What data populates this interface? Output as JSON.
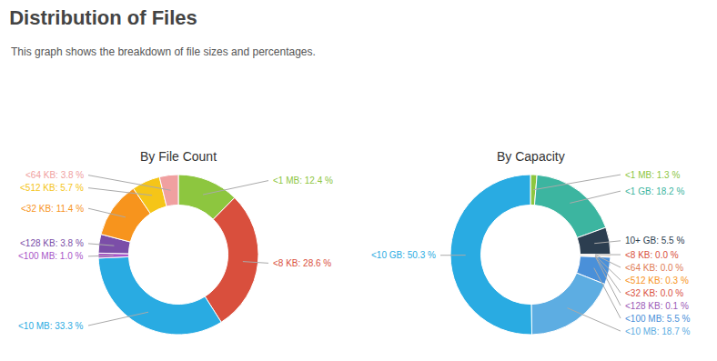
{
  "title": "Distribution of Files",
  "subtitle": "This graph shows the breakdown of file sizes and percentages.",
  "chart_data": [
    {
      "type": "donut",
      "title": "By File Count",
      "values": [
        12.4,
        28.6,
        33.3,
        1.0,
        3.8,
        11.4,
        5.7,
        3.8
      ],
      "value_labels": [
        "<1 MB: 12.4 %",
        "<8 KB: 28.6 %",
        "<10 MB: 33.3 %",
        "<100 MB: 1.0 %",
        "<128 KB: 3.8 %",
        "<32 KB: 11.4 %",
        "<512 KB: 5.7 %",
        "<64 KB: 3.8 %"
      ],
      "colors": [
        "#8DC63F",
        "#D94F3D",
        "#29ABE2",
        "#A855C8",
        "#7B4EA8",
        "#F7941D",
        "#F5C518",
        "#F0A0A0"
      ],
      "data_labels": true
    },
    {
      "type": "donut",
      "title": "By Capacity",
      "values": [
        1.3,
        18.2,
        5.5,
        0.05,
        0.05,
        0.3,
        0.05,
        0.1,
        5.5,
        18.7,
        50.3
      ],
      "value_labels": [
        "<1 MB: 1.3 %",
        "<1 GB: 18.2 %",
        "10+ GB: 5.5 %",
        "<8 KB: 0.0 %",
        "<64 KB: 0.0 %",
        "<512 KB: 0.3 %",
        "<32 KB: 0.0 %",
        "<128 KB: 0.1 %",
        "<100 MB: 5.5 %",
        "<10 MB: 18.7 %",
        "<10 GB: 50.3 %"
      ],
      "colors": [
        "#8DC63F",
        "#3CB5A0",
        "#2C3E50",
        "#D94F3D",
        "#E07B54",
        "#F7941D",
        "#D94F3D",
        "#9B59B6",
        "#4A90D9",
        "#5DADE2",
        "#29ABE2"
      ],
      "data_labels": true
    }
  ]
}
